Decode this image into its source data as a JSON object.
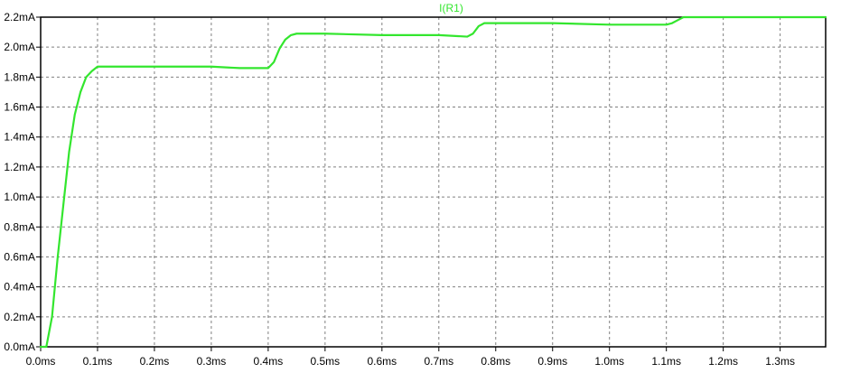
{
  "window": {
    "background": "#ffffff",
    "plot_border_color": "#000000",
    "grid_color": "#808080"
  },
  "chart_data": {
    "type": "line",
    "title": "",
    "xlabel": "",
    "ylabel": "",
    "grid": true,
    "legend": "top-center",
    "xlim": [
      0,
      1.38
    ],
    "ylim": [
      0,
      2.2
    ],
    "x_unit": "ms",
    "y_unit": "mA",
    "x_ticks": [
      0.0,
      0.1,
      0.2,
      0.3,
      0.4,
      0.5,
      0.6,
      0.7,
      0.8,
      0.9,
      1.0,
      1.1,
      1.2,
      1.3
    ],
    "x_tick_labels": [
      "0.0ms",
      "0.1ms",
      "0.2ms",
      "0.3ms",
      "0.4ms",
      "0.5ms",
      "0.6ms",
      "0.7ms",
      "0.8ms",
      "0.9ms",
      "1.0ms",
      "1.1ms",
      "1.2ms",
      "1.3ms"
    ],
    "y_ticks": [
      0.0,
      0.2,
      0.4,
      0.6,
      0.8,
      1.0,
      1.2,
      1.4,
      1.6,
      1.8,
      2.0,
      2.2
    ],
    "y_tick_labels": [
      "0.0mA",
      "0.2mA",
      "0.4mA",
      "0.6mA",
      "0.8mA",
      "1.0mA",
      "1.2mA",
      "1.4mA",
      "1.6mA",
      "1.8mA",
      "2.0mA",
      "2.2mA"
    ],
    "series": [
      {
        "name": "I(R1)",
        "color": "#33e62e",
        "x": [
          0,
          0.01,
          0.02,
          0.03,
          0.04,
          0.05,
          0.06,
          0.07,
          0.08,
          0.09,
          0.1,
          0.11,
          0.12,
          0.15,
          0.2,
          0.3,
          0.35,
          0.4,
          0.41,
          0.42,
          0.43,
          0.44,
          0.45,
          0.5,
          0.6,
          0.7,
          0.75,
          0.76,
          0.77,
          0.78,
          0.8,
          0.9,
          1.0,
          1.1,
          1.11,
          1.12,
          1.13,
          1.14,
          1.2,
          1.3,
          1.38
        ],
        "y": [
          0.0,
          0.0,
          0.2,
          0.6,
          0.95,
          1.3,
          1.55,
          1.7,
          1.8,
          1.84,
          1.87,
          1.87,
          1.87,
          1.87,
          1.87,
          1.87,
          1.86,
          1.86,
          1.9,
          1.99,
          2.05,
          2.08,
          2.09,
          2.09,
          2.08,
          2.08,
          2.07,
          2.09,
          2.14,
          2.16,
          2.16,
          2.16,
          2.15,
          2.15,
          2.16,
          2.18,
          2.2,
          2.2,
          2.2,
          2.2,
          2.2
        ]
      }
    ]
  }
}
